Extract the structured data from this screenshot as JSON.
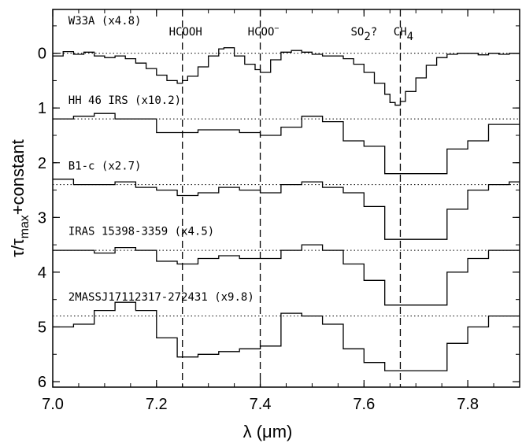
{
  "chart_data": {
    "type": "line",
    "title": "",
    "xlabel": "λ (μm)",
    "ylabel": {
      "main": "τ/τ",
      "sub": "max",
      "tail": "+constant"
    },
    "xlim": [
      7.0,
      7.9
    ],
    "ylim": [
      6.1,
      -0.8
    ],
    "y_reversed": true,
    "x_ticks": [
      "7.0",
      "7.2",
      "7.4",
      "7.6",
      "7.8"
    ],
    "x_tick_values": [
      7.0,
      7.2,
      7.4,
      7.6,
      7.8
    ],
    "y_ticks": [
      "0",
      "1",
      "2",
      "3",
      "4",
      "5",
      "6"
    ],
    "y_tick_values": [
      0,
      1,
      2,
      3,
      4,
      5,
      6
    ],
    "vertical_markers": [
      {
        "x": 7.25,
        "label": "HCOOH"
      },
      {
        "x": 7.4,
        "label": "HCOO",
        "sup": "−"
      },
      {
        "x": 7.67,
        "label": "CH",
        "sub": "4"
      }
    ],
    "extra_annotation": {
      "x": 7.6,
      "y": -0.4,
      "label": "SO",
      "sub": "2",
      "tail": "?"
    },
    "series": [
      {
        "name": "W33A (x4.8)",
        "baseline": 0.0,
        "style": "fine",
        "x": [
          7.0,
          7.02,
          7.04,
          7.06,
          7.08,
          7.1,
          7.12,
          7.14,
          7.16,
          7.18,
          7.2,
          7.22,
          7.24,
          7.25,
          7.26,
          7.28,
          7.3,
          7.32,
          7.33,
          7.35,
          7.37,
          7.39,
          7.4,
          7.42,
          7.44,
          7.46,
          7.48,
          7.5,
          7.52,
          7.54,
          7.56,
          7.58,
          7.6,
          7.62,
          7.64,
          7.65,
          7.66,
          7.67,
          7.68,
          7.7,
          7.72,
          7.74,
          7.76,
          7.78,
          7.8,
          7.82,
          7.84,
          7.86,
          7.88,
          7.9
        ],
        "y": [
          0.05,
          -0.03,
          0.02,
          -0.02,
          0.05,
          0.08,
          0.05,
          0.1,
          0.18,
          0.28,
          0.4,
          0.5,
          0.55,
          0.5,
          0.42,
          0.25,
          0.05,
          -0.08,
          -0.1,
          0.05,
          0.2,
          0.3,
          0.35,
          0.12,
          -0.02,
          -0.05,
          -0.02,
          0.02,
          0.05,
          0.05,
          0.1,
          0.2,
          0.35,
          0.55,
          0.75,
          0.9,
          0.95,
          0.88,
          0.7,
          0.45,
          0.22,
          0.08,
          0.02,
          0.0,
          0.0,
          0.03,
          0.0,
          0.02,
          0.0,
          0.0
        ]
      },
      {
        "name": "HH 46 IRS (x10.2)",
        "baseline": 1.2,
        "style": "step",
        "x": [
          7.0,
          7.04,
          7.08,
          7.12,
          7.16,
          7.2,
          7.24,
          7.28,
          7.32,
          7.36,
          7.4,
          7.44,
          7.48,
          7.52,
          7.56,
          7.6,
          7.64,
          7.72,
          7.76,
          7.8,
          7.84,
          7.88
        ],
        "y": [
          1.2,
          1.15,
          1.1,
          1.2,
          1.2,
          1.45,
          1.45,
          1.4,
          1.4,
          1.45,
          1.5,
          1.35,
          1.15,
          1.25,
          1.6,
          1.7,
          2.2,
          2.2,
          1.75,
          1.6,
          1.3,
          1.3
        ]
      },
      {
        "name": "B1-c (x2.7)",
        "baseline": 2.4,
        "style": "step",
        "x": [
          7.0,
          7.04,
          7.08,
          7.12,
          7.16,
          7.2,
          7.24,
          7.28,
          7.32,
          7.36,
          7.4,
          7.44,
          7.48,
          7.52,
          7.56,
          7.6,
          7.64,
          7.72,
          7.76,
          7.8,
          7.84,
          7.88
        ],
        "y": [
          2.3,
          2.4,
          2.4,
          2.35,
          2.45,
          2.5,
          2.6,
          2.55,
          2.45,
          2.5,
          2.55,
          2.4,
          2.35,
          2.45,
          2.55,
          2.8,
          3.4,
          3.4,
          2.85,
          2.5,
          2.4,
          2.35
        ]
      },
      {
        "name": "IRAS 15398-3359 (x4.5)",
        "baseline": 3.6,
        "style": "step",
        "x": [
          7.0,
          7.04,
          7.08,
          7.12,
          7.16,
          7.2,
          7.24,
          7.28,
          7.32,
          7.36,
          7.4,
          7.44,
          7.48,
          7.52,
          7.56,
          7.6,
          7.64,
          7.72,
          7.76,
          7.8,
          7.84,
          7.88
        ],
        "y": [
          3.6,
          3.6,
          3.65,
          3.55,
          3.6,
          3.8,
          3.85,
          3.75,
          3.7,
          3.75,
          3.75,
          3.6,
          3.5,
          3.6,
          3.85,
          4.15,
          4.6,
          4.6,
          4.0,
          3.75,
          3.6,
          3.6
        ]
      },
      {
        "name": "2MASSJ17112317-272431 (x9.8)",
        "baseline": 4.8,
        "style": "step",
        "x": [
          7.0,
          7.04,
          7.08,
          7.12,
          7.16,
          7.2,
          7.24,
          7.28,
          7.32,
          7.36,
          7.4,
          7.44,
          7.48,
          7.52,
          7.56,
          7.6,
          7.64,
          7.72,
          7.76,
          7.8,
          7.84,
          7.88
        ],
        "y": [
          5.0,
          4.95,
          4.7,
          4.55,
          4.7,
          5.2,
          5.55,
          5.5,
          5.45,
          5.4,
          5.35,
          4.75,
          4.8,
          4.95,
          5.4,
          5.65,
          5.8,
          5.8,
          5.3,
          5.0,
          4.8,
          4.8
        ]
      }
    ],
    "series_label_positions": [
      {
        "x": 7.03,
        "y": -0.6
      },
      {
        "x": 7.03,
        "y": 0.85
      },
      {
        "x": 7.03,
        "y": 2.05
      },
      {
        "x": 7.03,
        "y": 3.25
      },
      {
        "x": 7.03,
        "y": 4.45
      }
    ]
  }
}
